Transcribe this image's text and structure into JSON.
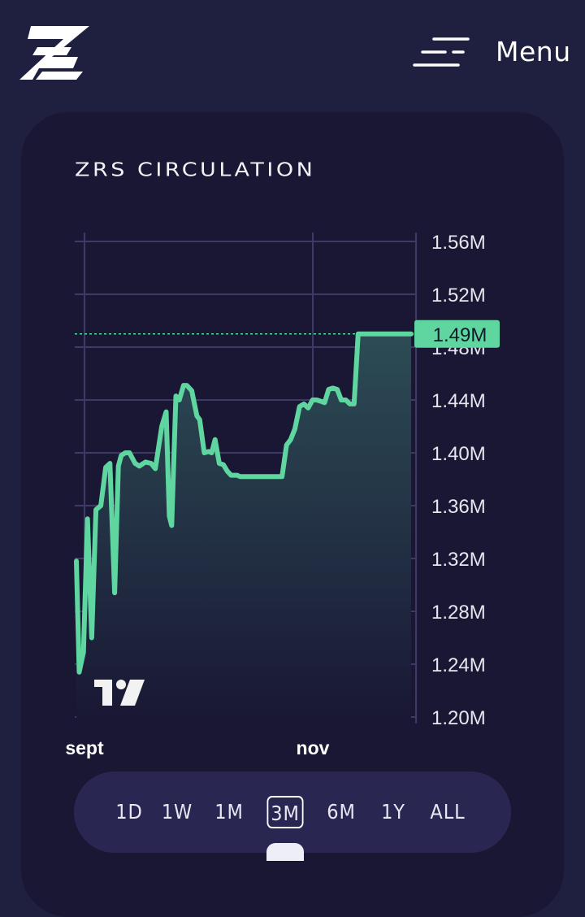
{
  "header": {
    "logo_icon": "zrs-z-logo",
    "menu_icon": "menu-lines-icon",
    "menu_label": "Menu"
  },
  "card": {
    "title": "ZRS CIRCULATION"
  },
  "colors": {
    "background": "#1f1f3f",
    "card": "#191734",
    "line": "#5fd6a0",
    "grid": "#3c3a66",
    "range_bar": "#292652"
  },
  "chart_data": {
    "type": "area",
    "title": "ZRS CIRCULATION",
    "xlabel": "",
    "ylabel": "",
    "ylim": [
      1.2,
      1.56
    ],
    "y_unit": "M",
    "y_ticks": [
      "1.56M",
      "1.52M",
      "1.48M",
      "1.44M",
      "1.40M",
      "1.36M",
      "1.32M",
      "1.28M",
      "1.24M",
      "1.20M"
    ],
    "x_tick_labels": [
      "sept",
      "nov"
    ],
    "current_value_label": "1.49M",
    "grid": true,
    "watermark": "tradingview-logo",
    "series": [
      {
        "x": [
          0.0,
          1.7,
          4.2,
          6.6,
          9.1,
          11.6,
          14.5,
          17.4,
          19.9,
          22.7,
          24.9,
          26.6,
          29.0,
          31.5,
          34.8,
          37.3,
          41.0,
          44.3,
          46.8,
          50.6,
          53.2,
          55.1,
          56.5,
          59.0,
          61.0,
          63.5,
          65.5,
          68.4,
          71.4,
          73.1,
          75.8,
          78.4,
          80.2,
          82.2,
          84.7,
          87.1,
          89.5,
          91.7,
          93.1,
          95.3,
          97.1,
          99.0,
          100.9,
          102.8,
          105.0,
          107.1,
          109.5,
          112.2,
          114.3,
          117.0,
          119.4,
          121.9,
          124.6,
          127.0,
          129.5,
          132.3,
          134.9,
          137.4,
          140.0,
          142.5,
          144.9,
          147.1,
          149.5,
          152.0,
          154.6,
          157.0,
          159.7,
          162.1,
          164.6,
          167.0,
          169.7,
          172.3,
          175.0,
          177.6,
          180.2,
          182.8,
          185.5,
          188.0,
          190.6,
          193.0,
          195.5,
          198.4
        ],
        "y": [
          1.318,
          1.234,
          1.249,
          1.35,
          1.26,
          1.357,
          1.36,
          1.389,
          1.392,
          1.294,
          1.39,
          1.398,
          1.4,
          1.4,
          1.392,
          1.39,
          1.393,
          1.392,
          1.388,
          1.42,
          1.431,
          1.352,
          1.345,
          1.443,
          1.44,
          1.451,
          1.451,
          1.447,
          1.428,
          1.425,
          1.4,
          1.401,
          1.4,
          1.41,
          1.392,
          1.391,
          1.386,
          1.383,
          1.383,
          1.383,
          1.382,
          1.382,
          1.382,
          1.382,
          1.382,
          1.382,
          1.382,
          1.382,
          1.382,
          1.382,
          1.382,
          1.382,
          1.406,
          1.41,
          1.418,
          1.435,
          1.437,
          1.434,
          1.44,
          1.44,
          1.439,
          1.438,
          1.448,
          1.449,
          1.448,
          1.44,
          1.44,
          1.437,
          1.437,
          1.49,
          1.49,
          1.49,
          1.49,
          1.49,
          1.49,
          1.49,
          1.49,
          1.49,
          1.49,
          1.49,
          1.49,
          1.49
        ]
      }
    ]
  },
  "range_selector": {
    "options": [
      "1D",
      "1W",
      "1M",
      "3M",
      "6M",
      "1Y",
      "ALL"
    ],
    "selected": "3M"
  }
}
